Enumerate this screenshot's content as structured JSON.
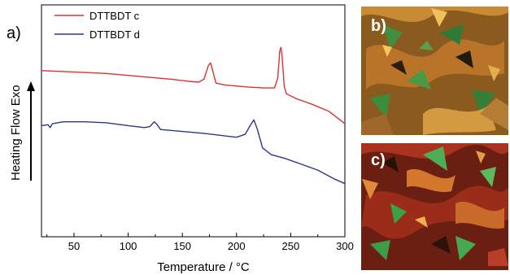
{
  "panel_label_a": "a)",
  "chart_data": {
    "type": "line",
    "xlabel": "Temperature / °C",
    "ylabel": "Heating Flow Exo",
    "xlim": [
      20,
      300
    ],
    "x_ticks": [
      50,
      100,
      150,
      200,
      250,
      300
    ],
    "y_ticks_shown": false,
    "grid": false,
    "legend_position": "top-left",
    "series": [
      {
        "name": "DTTBDT c",
        "color": "#e03030",
        "points": [
          [
            20,
            8.6
          ],
          [
            40,
            8.55
          ],
          [
            60,
            8.5
          ],
          [
            80,
            8.45
          ],
          [
            100,
            8.35
          ],
          [
            120,
            8.25
          ],
          [
            140,
            8.15
          ],
          [
            155,
            8.05
          ],
          [
            165,
            8.0
          ],
          [
            170,
            8.15
          ],
          [
            174,
            8.85
          ],
          [
            176,
            9.0
          ],
          [
            178,
            8.6
          ],
          [
            181,
            7.95
          ],
          [
            190,
            7.85
          ],
          [
            210,
            7.75
          ],
          [
            225,
            7.7
          ],
          [
            235,
            7.7
          ],
          [
            238,
            8.2
          ],
          [
            240,
            9.65
          ],
          [
            241,
            9.8
          ],
          [
            242,
            9.4
          ],
          [
            244,
            7.8
          ],
          [
            246,
            7.4
          ],
          [
            255,
            7.15
          ],
          [
            270,
            6.85
          ],
          [
            285,
            6.5
          ],
          [
            300,
            5.85
          ]
        ]
      },
      {
        "name": "DTTBDT d",
        "color": "#2e3590",
        "points": [
          [
            20,
            5.75
          ],
          [
            26,
            5.8
          ],
          [
            28,
            5.65
          ],
          [
            30,
            5.85
          ],
          [
            40,
            5.95
          ],
          [
            60,
            5.95
          ],
          [
            80,
            5.9
          ],
          [
            100,
            5.75
          ],
          [
            115,
            5.65
          ],
          [
            120,
            5.7
          ],
          [
            124,
            5.95
          ],
          [
            126,
            5.85
          ],
          [
            130,
            5.55
          ],
          [
            150,
            5.45
          ],
          [
            170,
            5.35
          ],
          [
            185,
            5.25
          ],
          [
            200,
            5.15
          ],
          [
            208,
            5.3
          ],
          [
            212,
            5.7
          ],
          [
            216,
            6.05
          ],
          [
            219,
            5.6
          ],
          [
            224,
            4.6
          ],
          [
            232,
            4.25
          ],
          [
            245,
            4.05
          ],
          [
            260,
            3.75
          ],
          [
            275,
            3.45
          ],
          [
            290,
            3.0
          ],
          [
            300,
            2.75
          ]
        ]
      }
    ]
  },
  "photos": [
    {
      "label": "b)",
      "description_colors": [
        "#c77d2a",
        "#3a8a3a",
        "#2b1f10"
      ]
    },
    {
      "label": "c)",
      "description_colors": [
        "#a8341f",
        "#3aa04a",
        "#2a0f08"
      ]
    }
  ]
}
